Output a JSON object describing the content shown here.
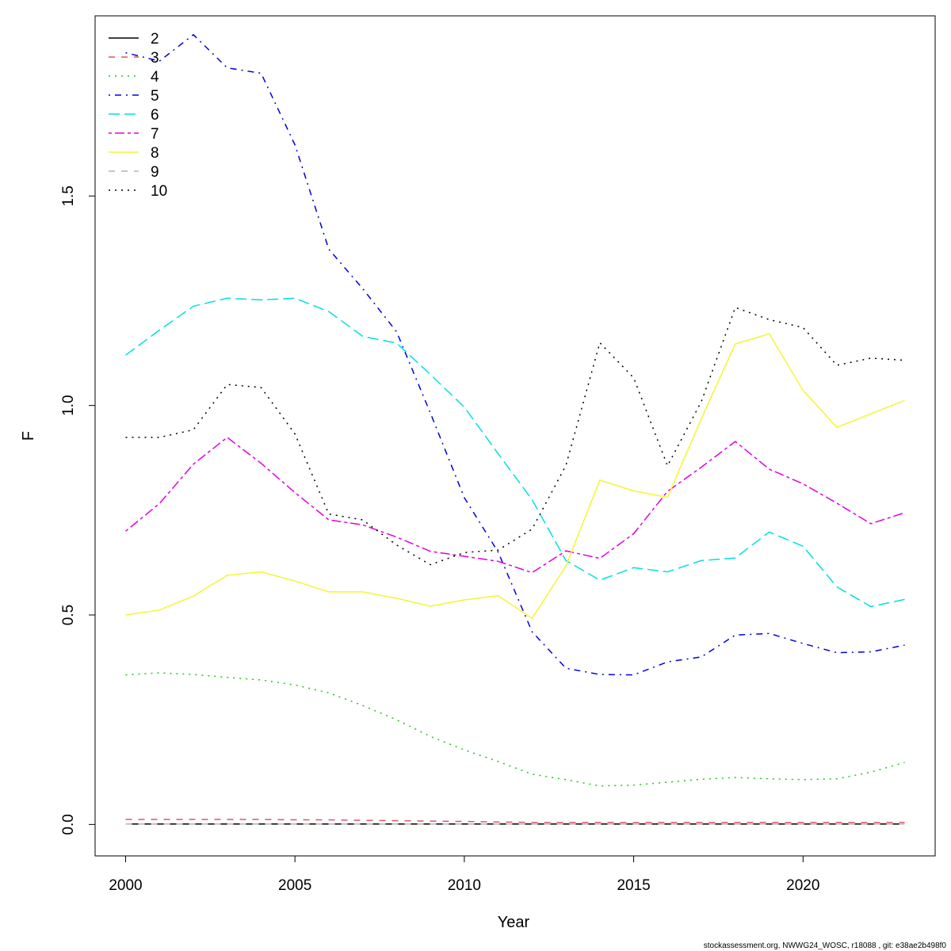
{
  "chart_data": {
    "type": "line",
    "xlabel": "Year",
    "ylabel": "F",
    "xlim": [
      1999.1,
      2023.9
    ],
    "ylim": [
      -0.075,
      1.93
    ],
    "x_ticks": [
      2000,
      2005,
      2010,
      2015,
      2020
    ],
    "y_ticks": [
      0.0,
      0.5,
      1.0,
      1.5
    ],
    "y_tick_labels": [
      "0.0",
      "0.5",
      "1.0",
      "1.5"
    ],
    "legend_position": "top-left",
    "x": [
      2000,
      2001,
      2002,
      2003,
      2004,
      2005,
      2006,
      2007,
      2008,
      2009,
      2010,
      2011,
      2012,
      2013,
      2014,
      2015,
      2016,
      2017,
      2018,
      2019,
      2020,
      2021,
      2022,
      2023
    ],
    "series": [
      {
        "name": "2",
        "color": "#000000",
        "dash": "solid",
        "values": [
          0.001,
          0.001,
          0.001,
          0.001,
          0.001,
          0.001,
          0.001,
          0.001,
          0.001,
          0.001,
          0.001,
          0.001,
          0.001,
          0.001,
          0.001,
          0.001,
          0.001,
          0.001,
          0.001,
          0.001,
          0.001,
          0.001,
          0.001,
          0.001
        ]
      },
      {
        "name": "3",
        "color": "#df536b",
        "dash": "dashed",
        "values": [
          0.012,
          0.012,
          0.012,
          0.012,
          0.012,
          0.011,
          0.011,
          0.01,
          0.009,
          0.008,
          0.007,
          0.006,
          0.005,
          0.005,
          0.005,
          0.005,
          0.005,
          0.005,
          0.005,
          0.005,
          0.005,
          0.005,
          0.005,
          0.005
        ]
      },
      {
        "name": "4",
        "color": "#22c322",
        "dash": "dotted",
        "values": [
          0.357,
          0.362,
          0.358,
          0.351,
          0.345,
          0.333,
          0.314,
          0.284,
          0.25,
          0.21,
          0.178,
          0.15,
          0.12,
          0.107,
          0.092,
          0.094,
          0.101,
          0.108,
          0.112,
          0.109,
          0.107,
          0.109,
          0.125,
          0.148
        ]
      },
      {
        "name": "5",
        "color": "#0000dd",
        "dash": "dotdash",
        "values": [
          1.842,
          1.822,
          1.885,
          1.806,
          1.793,
          1.622,
          1.373,
          1.279,
          1.176,
          0.982,
          0.78,
          0.65,
          0.46,
          0.373,
          0.358,
          0.357,
          0.388,
          0.4,
          0.452,
          0.456,
          0.432,
          0.41,
          0.412,
          0.428
        ]
      },
      {
        "name": "6",
        "color": "#00e0e0",
        "dash": "longdash",
        "values": [
          1.12,
          1.18,
          1.237,
          1.256,
          1.252,
          1.256,
          1.224,
          1.165,
          1.149,
          1.074,
          0.996,
          0.885,
          0.775,
          0.63,
          0.583,
          0.613,
          0.603,
          0.63,
          0.636,
          0.698,
          0.664,
          0.567,
          0.52,
          0.537
        ]
      },
      {
        "name": "7",
        "color": "#e000e0",
        "dash": "twodash",
        "values": [
          0.7,
          0.766,
          0.86,
          0.924,
          0.862,
          0.792,
          0.727,
          0.715,
          0.686,
          0.652,
          0.64,
          0.628,
          0.601,
          0.653,
          0.635,
          0.694,
          0.795,
          0.853,
          0.914,
          0.848,
          0.813,
          0.767,
          0.718,
          0.744
        ]
      },
      {
        "name": "8",
        "color": "#f5f530",
        "dash": "solid",
        "values": [
          0.5,
          0.512,
          0.545,
          0.595,
          0.603,
          0.581,
          0.555,
          0.555,
          0.54,
          0.521,
          0.536,
          0.546,
          0.492,
          0.617,
          0.822,
          0.796,
          0.781,
          0.969,
          1.147,
          1.171,
          1.036,
          0.948,
          0.98,
          1.012
        ]
      },
      {
        "name": "9",
        "color": "#b3b3b3",
        "dash": "dashed",
        "values": [
          0.001,
          0.001,
          0.001,
          0.001,
          0.001,
          0.001,
          0.001,
          0.001,
          0.001,
          0.001,
          0.001,
          0.001,
          0.001,
          0.001,
          0.001,
          0.001,
          0.001,
          0.001,
          0.001,
          0.001,
          0.001,
          0.001,
          0.001,
          0.001
        ]
      },
      {
        "name": "10",
        "color": "#000000",
        "dash": "dotted",
        "values": [
          0.924,
          0.924,
          0.942,
          1.05,
          1.043,
          0.932,
          0.741,
          0.727,
          0.667,
          0.62,
          0.649,
          0.655,
          0.705,
          0.857,
          1.15,
          1.066,
          0.856,
          1.01,
          1.234,
          1.205,
          1.186,
          1.096,
          1.113,
          1.108
        ]
      }
    ]
  },
  "footer": {
    "text": "stockassessment.org, NWWG24_WOSC, r18088 , git: e38ae2b498f0"
  }
}
